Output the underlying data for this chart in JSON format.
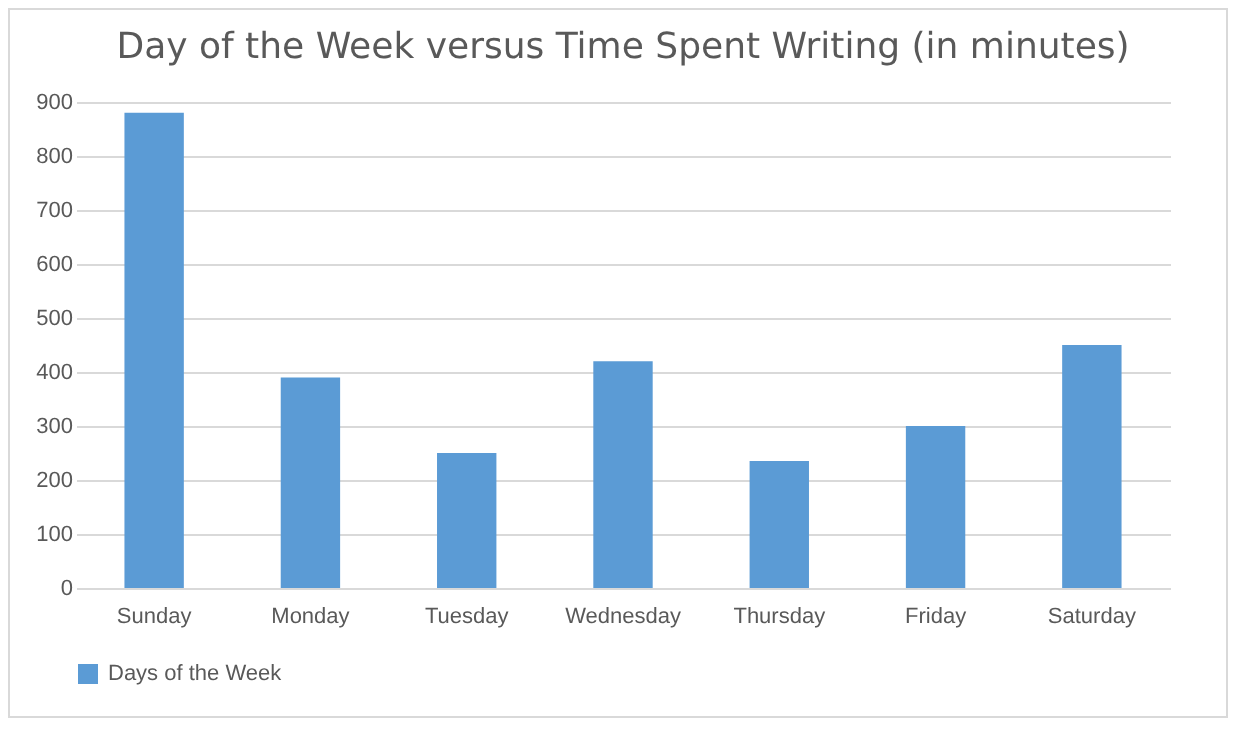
{
  "chart_data": {
    "type": "bar",
    "title": "Day of the Week versus Time Spent Writing (in minutes)",
    "categories": [
      "Sunday",
      "Monday",
      "Tuesday",
      "Wednesday",
      "Thursday",
      "Friday",
      "Saturday"
    ],
    "series": [
      {
        "name": "Days of the Week",
        "color": "#5b9bd5",
        "values": [
          880,
          390,
          250,
          420,
          235,
          300,
          450
        ]
      }
    ],
    "ylim": [
      0,
      900
    ],
    "yticks": [
      0,
      100,
      200,
      300,
      400,
      500,
      600,
      700,
      800,
      900
    ],
    "grid": "y",
    "legend": "bottom"
  }
}
